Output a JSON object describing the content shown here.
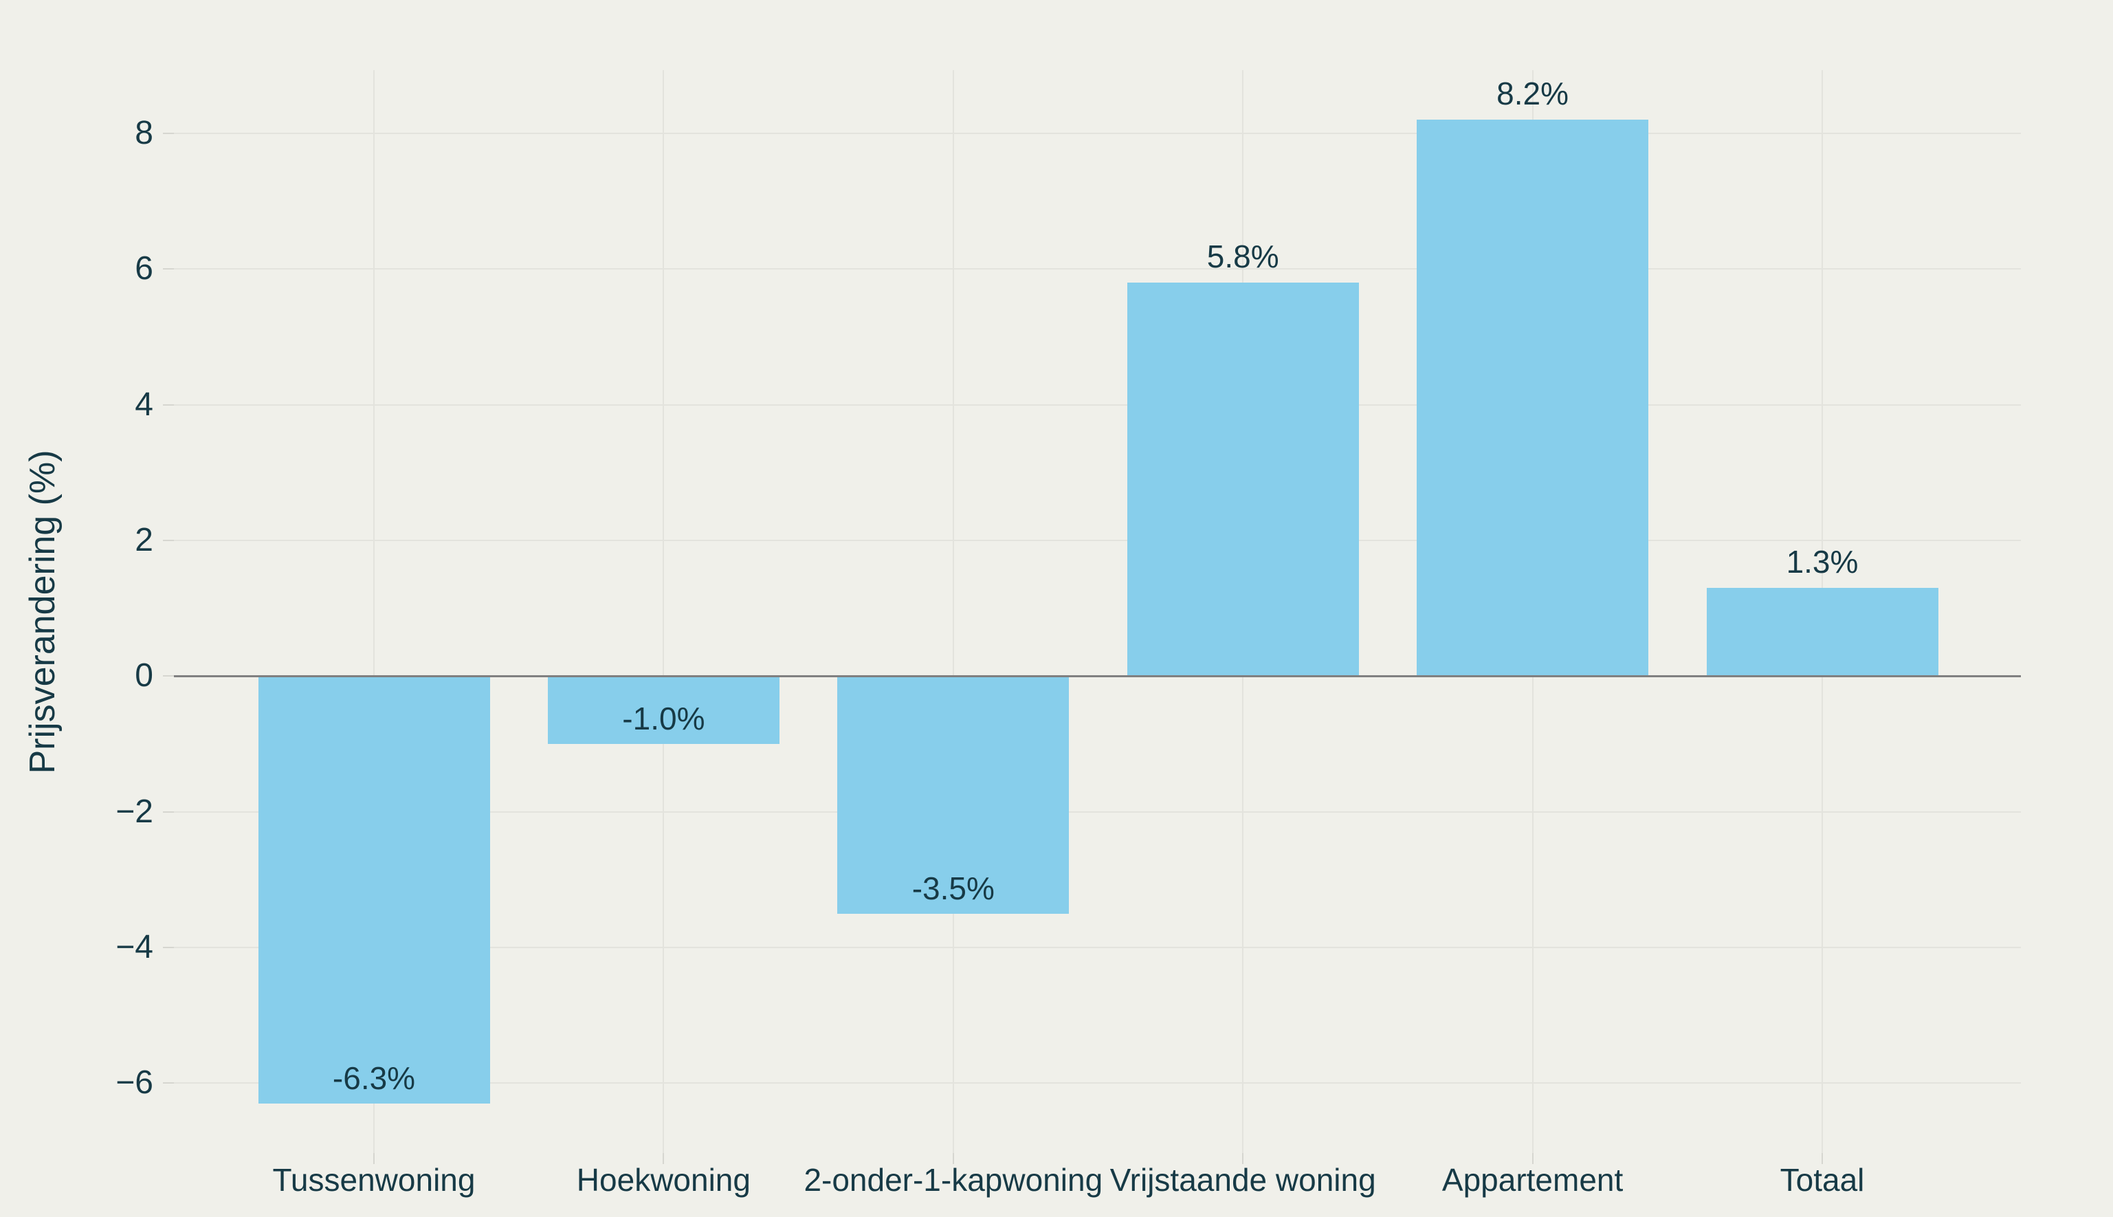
{
  "chart_data": {
    "type": "bar",
    "title": "",
    "xlabel": "",
    "ylabel": "Prijsverandering (%)",
    "categories": [
      "Tussenwoning",
      "Hoekwoning",
      "2-onder-1-kapwoning",
      "Vrijstaande woning",
      "Appartement",
      "Totaal"
    ],
    "values": [
      -6.3,
      -1.0,
      -3.5,
      5.8,
      8.2,
      1.3
    ],
    "bar_labels": [
      "-6.3%",
      "-1.0%",
      "-3.5%",
      "5.8%",
      "8.2%",
      "1.3%"
    ],
    "yticks": [
      8,
      6,
      4,
      2,
      0,
      -2,
      -4,
      -6
    ],
    "ytick_labels": [
      "8",
      "6",
      "4",
      "2",
      "0",
      "−2",
      "−4",
      "−6"
    ],
    "ylim": [
      -7.03,
      8.93
    ],
    "grid": "on",
    "legend": "none",
    "colors": {
      "bar": "#87CEEB",
      "background": "#F0F0EA",
      "text": "#173A46",
      "gridline": "#E3E3DD",
      "tick": "#D6D6D0",
      "zero_line": "#808080"
    }
  }
}
